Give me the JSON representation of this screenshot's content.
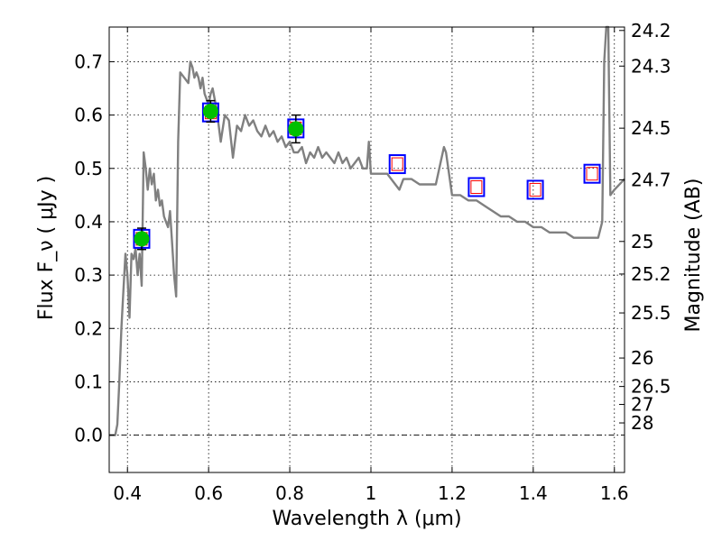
{
  "chart_data": {
    "type": "line",
    "title": "",
    "xlabel": "Wavelength  λ (μm)",
    "ylabel": "Flux  F_ν  ( μJy )",
    "ylabel_right": "Magnitude (AB)",
    "xlim": [
      0.355,
      1.625
    ],
    "ylim": [
      -0.07,
      0.765
    ],
    "x_ticks": [
      "0.4",
      "0.6",
      "0.8",
      "1",
      "1.2",
      "1.4",
      "1.6"
    ],
    "y_ticks": [
      "0.0",
      "0.1",
      "0.2",
      "0.3",
      "0.4",
      "0.5",
      "0.6",
      "0.7"
    ],
    "right_ticks": [
      "24.2",
      "24.3",
      "24.5",
      "24.7",
      "25",
      "25.2",
      "25.5",
      "26",
      "26.5",
      "27",
      "28"
    ],
    "grid": true,
    "reference_line_y": 0.0,
    "colors": {
      "model": "#808080",
      "detection": "#00c000",
      "box": "#0000ff",
      "model_point": "#ff0000"
    },
    "model_sed": {
      "x": [
        0.355,
        0.37,
        0.375,
        0.38,
        0.385,
        0.39,
        0.395,
        0.4,
        0.405,
        0.41,
        0.415,
        0.42,
        0.425,
        0.43,
        0.435,
        0.44,
        0.445,
        0.45,
        0.455,
        0.46,
        0.465,
        0.47,
        0.475,
        0.48,
        0.485,
        0.49,
        0.495,
        0.5,
        0.505,
        0.51,
        0.515,
        0.52,
        0.525,
        0.53,
        0.54,
        0.55,
        0.555,
        0.56,
        0.565,
        0.57,
        0.575,
        0.58,
        0.585,
        0.59,
        0.595,
        0.6,
        0.605,
        0.61,
        0.62,
        0.63,
        0.64,
        0.65,
        0.66,
        0.67,
        0.68,
        0.69,
        0.7,
        0.71,
        0.72,
        0.73,
        0.74,
        0.75,
        0.76,
        0.77,
        0.78,
        0.79,
        0.8,
        0.81,
        0.82,
        0.83,
        0.84,
        0.85,
        0.86,
        0.87,
        0.88,
        0.89,
        0.9,
        0.91,
        0.92,
        0.93,
        0.94,
        0.95,
        0.96,
        0.97,
        0.98,
        0.99,
        0.995,
        1.0,
        1.02,
        1.04,
        1.06,
        1.07,
        1.08,
        1.1,
        1.12,
        1.14,
        1.16,
        1.18,
        1.185,
        1.2,
        1.22,
        1.24,
        1.26,
        1.28,
        1.3,
        1.32,
        1.34,
        1.36,
        1.38,
        1.4,
        1.42,
        1.44,
        1.46,
        1.48,
        1.5,
        1.52,
        1.54,
        1.555,
        1.56,
        1.57,
        1.575,
        1.58,
        1.585,
        1.59,
        1.6,
        1.625
      ],
      "y": [
        0.0,
        0.0,
        0.02,
        0.1,
        0.2,
        0.27,
        0.34,
        0.3,
        0.22,
        0.34,
        0.33,
        0.35,
        0.3,
        0.34,
        0.28,
        0.53,
        0.5,
        0.46,
        0.5,
        0.47,
        0.49,
        0.44,
        0.46,
        0.43,
        0.44,
        0.41,
        0.4,
        0.39,
        0.42,
        0.36,
        0.3,
        0.26,
        0.55,
        0.68,
        0.67,
        0.66,
        0.7,
        0.69,
        0.67,
        0.68,
        0.67,
        0.65,
        0.67,
        0.64,
        0.63,
        0.62,
        0.64,
        0.65,
        0.61,
        0.55,
        0.6,
        0.59,
        0.52,
        0.58,
        0.57,
        0.6,
        0.58,
        0.59,
        0.57,
        0.56,
        0.58,
        0.56,
        0.57,
        0.55,
        0.56,
        0.54,
        0.55,
        0.53,
        0.53,
        0.54,
        0.51,
        0.53,
        0.52,
        0.54,
        0.52,
        0.53,
        0.52,
        0.51,
        0.53,
        0.51,
        0.52,
        0.5,
        0.51,
        0.52,
        0.5,
        0.5,
        0.55,
        0.49,
        0.49,
        0.49,
        0.47,
        0.46,
        0.48,
        0.48,
        0.47,
        0.47,
        0.47,
        0.54,
        0.53,
        0.45,
        0.45,
        0.44,
        0.44,
        0.43,
        0.42,
        0.41,
        0.41,
        0.4,
        0.4,
        0.39,
        0.39,
        0.38,
        0.38,
        0.38,
        0.37,
        0.37,
        0.37,
        0.37,
        0.37,
        0.4,
        0.7,
        0.765,
        0.765,
        0.45,
        0.46,
        0.48
      ]
    },
    "observed_points": {
      "x": [
        0.435,
        0.605,
        0.815
      ],
      "y": [
        0.368,
        0.607,
        0.574
      ],
      "error": [
        0.02,
        0.02,
        0.026
      ]
    },
    "model_points": {
      "x": [
        0.435,
        0.605,
        0.815,
        1.065,
        1.26,
        1.405,
        1.545
      ],
      "y": [
        0.368,
        0.605,
        0.575,
        0.508,
        0.465,
        0.46,
        0.49
      ]
    }
  }
}
